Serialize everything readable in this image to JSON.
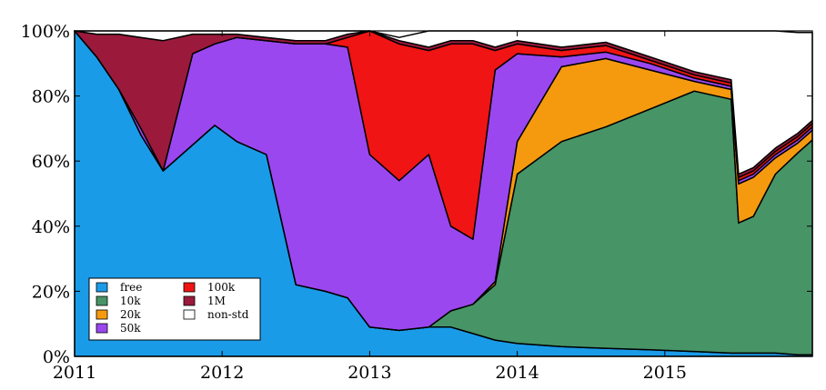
{
  "chart_data": {
    "type": "area",
    "stacked": true,
    "x_unit": "year",
    "xlim": [
      2011,
      2016
    ],
    "ylim": [
      0,
      100
    ],
    "x_ticks": [
      2011,
      2012,
      2013,
      2014,
      2015
    ],
    "x_tick_labels": [
      "2011",
      "2012",
      "2013",
      "2014",
      "2015"
    ],
    "y_ticks": [
      0,
      20,
      40,
      60,
      80,
      100
    ],
    "y_tick_labels": [
      "0%",
      "20%",
      "40%",
      "60%",
      "80%",
      "100%"
    ],
    "legend_placement": "bottom-left",
    "x": [
      2011.0,
      2011.15,
      2011.3,
      2011.45,
      2011.6,
      2011.8,
      2011.95,
      2012.1,
      2012.3,
      2012.5,
      2012.7,
      2012.85,
      2013.0,
      2013.2,
      2013.4,
      2013.55,
      2013.7,
      2013.85,
      2014.0,
      2014.3,
      2014.6,
      2014.9,
      2015.2,
      2015.45,
      2015.5,
      2015.6,
      2015.75,
      2015.9,
      2016.0
    ],
    "series": [
      {
        "name": "free",
        "color": "#1a9be8",
        "values": [
          100,
          92,
          82,
          68,
          57,
          65,
          71,
          66,
          62,
          22,
          20,
          18,
          9,
          8,
          9,
          9,
          7,
          5,
          4,
          3,
          2.5,
          2,
          1.5,
          1,
          1,
          1,
          1,
          0.5,
          0.5
        ]
      },
      {
        "name": "10k",
        "color": "#479467",
        "values": [
          0,
          0,
          0,
          0,
          0,
          0,
          0,
          0,
          0,
          0,
          0,
          0,
          0,
          0,
          0,
          5,
          9,
          17,
          52,
          63,
          68,
          74,
          80,
          78,
          40,
          42,
          55,
          62,
          66
        ]
      },
      {
        "name": "20k",
        "color": "#f59a0f",
        "values": [
          0,
          0,
          0,
          0,
          0,
          0,
          0,
          0,
          0,
          0,
          0,
          0,
          0,
          0,
          0,
          0,
          0,
          1,
          10,
          23,
          21,
          12,
          3,
          3,
          12,
          12,
          5,
          3,
          3
        ]
      },
      {
        "name": "50k",
        "color": "#9b47f0",
        "values": [
          0,
          0,
          0,
          2,
          0,
          28,
          25,
          32,
          35,
          74,
          76,
          77,
          53,
          46,
          53,
          26,
          20,
          65,
          27,
          3,
          2,
          2,
          1,
          1,
          1,
          1,
          1,
          1,
          1
        ]
      },
      {
        "name": "100k",
        "color": "#f01414",
        "values": [
          0,
          0,
          0,
          0,
          0,
          0,
          0,
          0,
          0,
          0,
          0,
          3,
          38,
          42,
          32,
          56,
          60,
          6,
          3,
          2,
          2,
          1,
          1,
          1,
          1,
          1,
          1,
          1,
          1
        ]
      },
      {
        "name": "1M",
        "color": "#9b1a3c",
        "values": [
          0,
          7,
          17,
          28,
          40,
          6,
          3,
          1,
          1,
          1,
          1,
          1,
          1,
          1,
          1,
          1,
          1,
          1,
          1,
          1,
          1,
          1,
          1,
          1,
          1,
          1,
          1,
          1,
          1
        ]
      },
      {
        "name": "non-std",
        "color": "#ffffff",
        "values": [
          0,
          1,
          1,
          2,
          3,
          1,
          1,
          1,
          2,
          3,
          3,
          1,
          1,
          1,
          5,
          3,
          3,
          5,
          3,
          5,
          4,
          8,
          13,
          15,
          44,
          42,
          36,
          31,
          27
        ]
      }
    ]
  }
}
